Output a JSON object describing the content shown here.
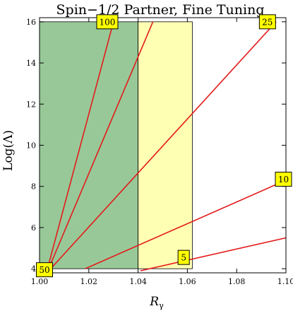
{
  "chart_data": {
    "type": "line",
    "title": "Spin−1/2 Partner, Fine Tuning",
    "xlabel": {
      "main": "R",
      "sub": "γ"
    },
    "ylabel": "Log(Λ)",
    "xlim": [
      1.0,
      1.1
    ],
    "ylim": [
      3.8,
      16.2
    ],
    "x_ticks": [
      {
        "value": 1.0,
        "label": "1.00"
      },
      {
        "value": 1.02,
        "label": "1.02"
      },
      {
        "value": 1.04,
        "label": "1.04"
      },
      {
        "value": 1.06,
        "label": "1.06"
      },
      {
        "value": 1.08,
        "label": "1.08"
      },
      {
        "value": 1.1,
        "label": "1.10"
      }
    ],
    "y_ticks": [
      {
        "value": 4,
        "label": "4"
      },
      {
        "value": 6,
        "label": "6"
      },
      {
        "value": 8,
        "label": "8"
      },
      {
        "value": 10,
        "label": "10"
      },
      {
        "value": 12,
        "label": "12"
      },
      {
        "value": 14,
        "label": "14"
      },
      {
        "value": 16,
        "label": "16"
      }
    ],
    "regions": [
      {
        "x": [
          1.0,
          1.04
        ],
        "y": [
          4,
          16
        ],
        "color": "#98c898"
      },
      {
        "x": [
          1.04,
          1.062
        ],
        "y": [
          4,
          16
        ],
        "color": "#ffffb3"
      }
    ],
    "line_color": "#e41a1a",
    "series": [
      {
        "label": "100",
        "points": [
          [
            1.003,
            3.9
          ],
          [
            1.03,
            16
          ]
        ],
        "label_at": [
          1.0275,
          16
        ]
      },
      {
        "label": "50",
        "points": [
          [
            1.003,
            3.8
          ],
          [
            1.046,
            16
          ]
        ],
        "label_at": [
          1.002,
          3.95
        ]
      },
      {
        "label": "25",
        "points": [
          [
            1.003,
            3.8
          ],
          [
            1.096,
            16
          ]
        ],
        "label_at": [
          1.0925,
          16
        ]
      },
      {
        "label": "10",
        "points": [
          [
            1.0185,
            4.0
          ],
          [
            1.1,
            8.3
          ]
        ],
        "label_at": [
          1.1,
          8.35
        ]
      },
      {
        "label": "5",
        "points": [
          [
            1.041,
            3.9
          ],
          [
            1.1,
            5.5
          ]
        ],
        "label_at": [
          1.0585,
          4.55
        ]
      }
    ],
    "label_box_color": "#ffff00"
  }
}
